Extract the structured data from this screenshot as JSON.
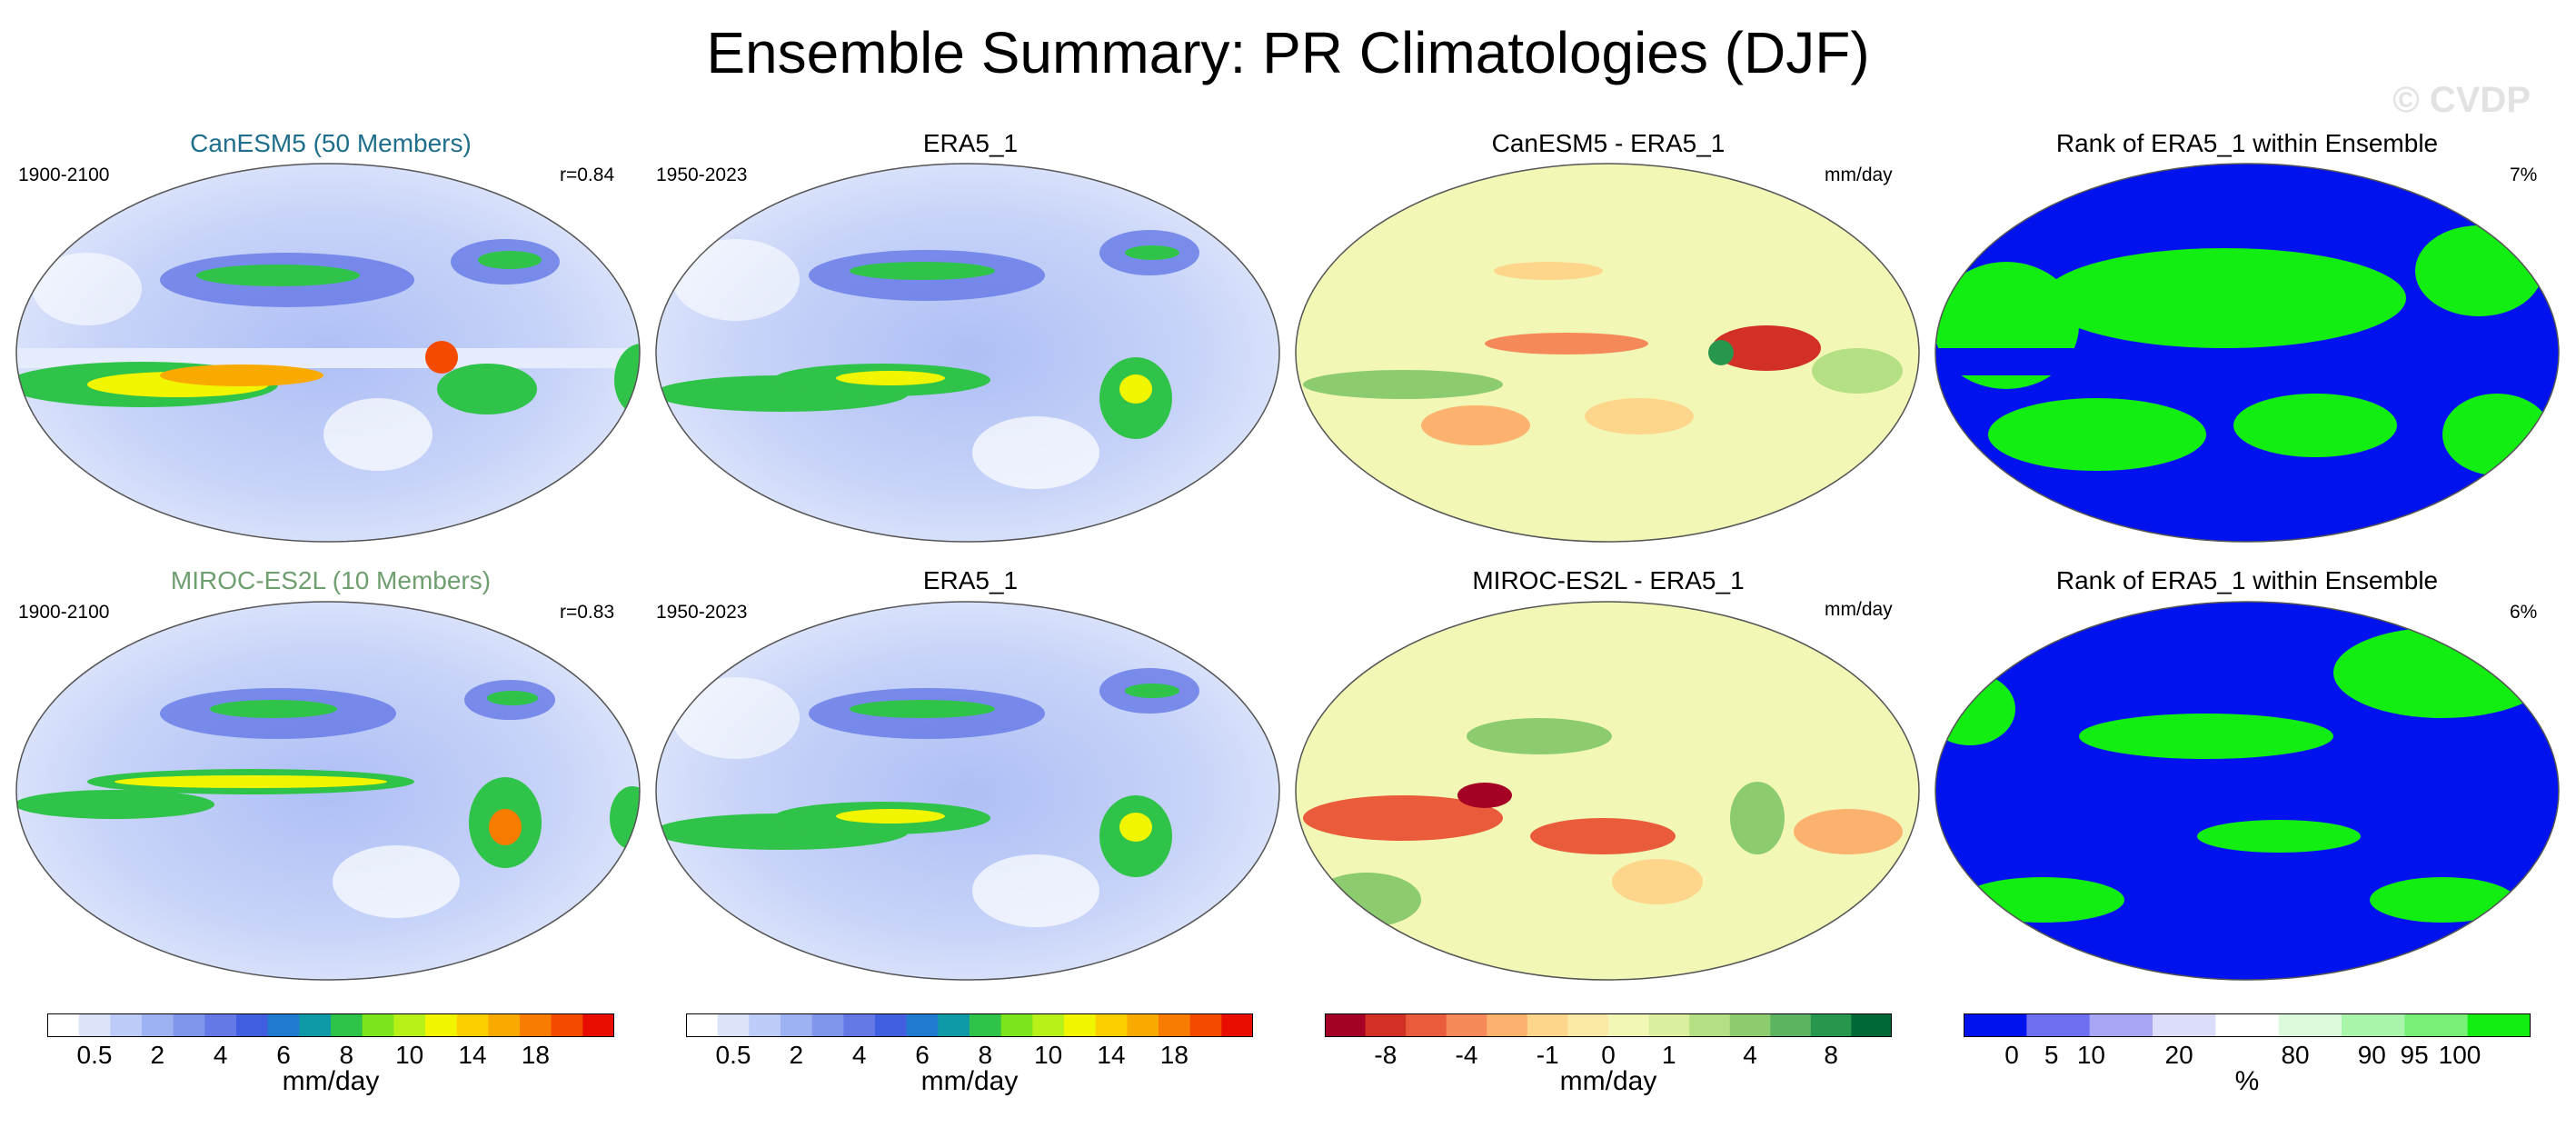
{
  "figure": {
    "title": "Ensemble Summary: PR Climatologies (DJF)",
    "watermark": "© CVDP"
  },
  "rows": [
    {
      "model": "CanESM5 (50 Members)",
      "model_color": "#1f6e8c",
      "model_period": "1900-2100",
      "pattern_corr": "r=0.84",
      "obs_title": "ERA5_1",
      "obs_period": "1950-2023",
      "diff_title": "CanESM5 - ERA5_1",
      "diff_units": "mm/day",
      "rank_title": "Rank of ERA5_1 within Ensemble",
      "rank_pct": "7%"
    },
    {
      "model": "MIROC-ES2L (10 Members)",
      "model_color": "#6f9e6f",
      "model_period": "1900-2100",
      "pattern_corr": "r=0.83",
      "obs_title": "ERA5_1",
      "obs_period": "1950-2023",
      "diff_title": "MIROC-ES2L - ERA5_1",
      "diff_units": "mm/day",
      "rank_title": "Rank of ERA5_1 within Ensemble",
      "rank_pct": "6%"
    }
  ],
  "colorbars": {
    "precip": {
      "colors": [
        "#ffffff",
        "#dbe4fb",
        "#bccbf7",
        "#9db2f2",
        "#8096ec",
        "#6478e6",
        "#3f5fe0",
        "#1f7ad0",
        "#0e9aa6",
        "#30c34a",
        "#7be41c",
        "#b8f117",
        "#f2f500",
        "#fbd000",
        "#f9aa00",
        "#f87c00",
        "#f44a00",
        "#e80d00"
      ],
      "labels": [
        "0.5",
        "2",
        "4",
        "6",
        "8",
        "10",
        "14",
        "18"
      ],
      "units": "mm/day"
    },
    "diff": {
      "colors": [
        "#a50026",
        "#d22f27",
        "#e95b3b",
        "#f6895a",
        "#fbb26f",
        "#fdd58b",
        "#fae9a4",
        "#f3f7b6",
        "#dbefa0",
        "#b5df83",
        "#8ccc6e",
        "#5cb45f",
        "#27974d",
        "#006837"
      ],
      "labels": [
        "-8",
        "-4",
        "-1",
        "0",
        "1",
        "4",
        "8"
      ],
      "units": "mm/day"
    },
    "rank": {
      "colors": [
        "#0012ee",
        "#6e6ef0",
        "#a6a6f4",
        "#dcdcfb",
        "#ffffff",
        "#dcfbdc",
        "#a9f5a9",
        "#78f078",
        "#12ee12"
      ],
      "labels": [
        "0",
        "5",
        "10",
        "20",
        "80",
        "90",
        "95",
        "100"
      ],
      "units": "%"
    }
  }
}
